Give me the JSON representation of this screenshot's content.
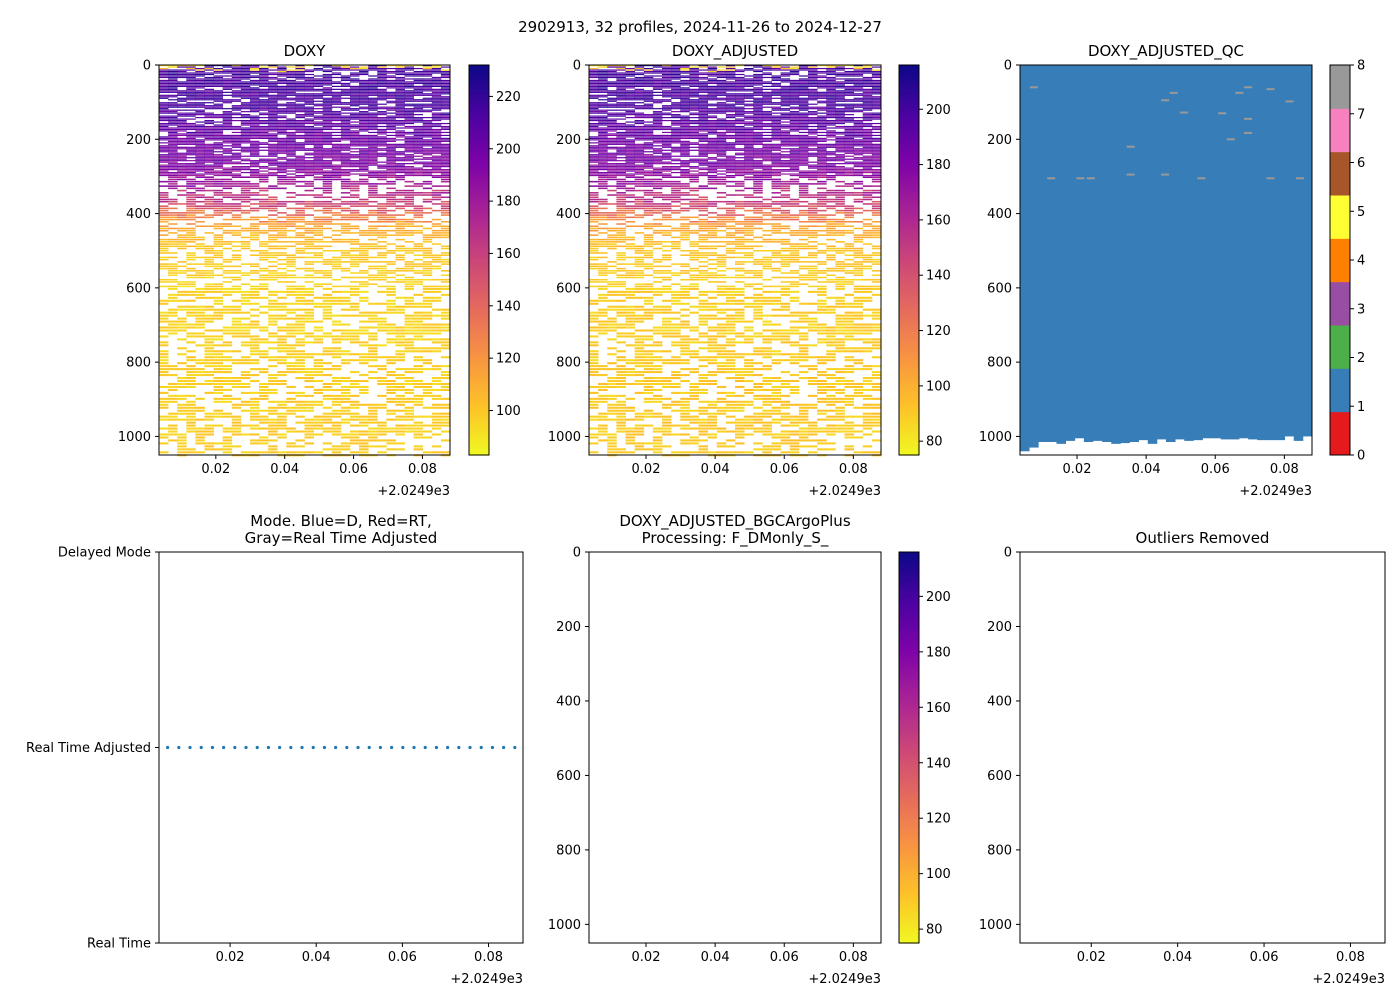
{
  "figure_title": "2902913, 32 profiles, 2024-11-26 to 2024-12-27",
  "chart_data": [
    {
      "id": "doxy",
      "type": "heatmap",
      "title": "DOXY",
      "x_offset_label": "+2.0249e3",
      "xlim": [
        0.0035,
        0.088
      ],
      "ylim": [
        1050,
        0
      ],
      "xticks": [
        "0.02",
        "0.04",
        "0.06",
        "0.08"
      ],
      "xtick_values": [
        0.02,
        0.04,
        0.06,
        0.08
      ],
      "yticks": [
        "0",
        "200",
        "400",
        "600",
        "800",
        "1000"
      ],
      "ytick_values": [
        0,
        200,
        400,
        600,
        800,
        1000
      ],
      "colorbar": {
        "cmap": "plasma_r",
        "vmin": 83,
        "vmax": 232,
        "ticks": [
          "100",
          "120",
          "140",
          "160",
          "180",
          "200",
          "220"
        ],
        "tick_values": [
          100,
          120,
          140,
          160,
          180,
          200,
          220
        ]
      },
      "profiles": 32,
      "depth_max": 1050,
      "depth_profile": [
        {
          "depth": 0,
          "value": 215
        },
        {
          "depth": 100,
          "value": 212
        },
        {
          "depth": 200,
          "value": 200
        },
        {
          "depth": 280,
          "value": 192
        },
        {
          "depth": 330,
          "value": 175
        },
        {
          "depth": 380,
          "value": 150
        },
        {
          "depth": 420,
          "value": 115
        },
        {
          "depth": 480,
          "value": 100
        },
        {
          "depth": 600,
          "value": 95
        },
        {
          "depth": 800,
          "value": 96
        },
        {
          "depth": 1050,
          "value": 98
        }
      ]
    },
    {
      "id": "doxy_adjusted",
      "type": "heatmap",
      "title": "DOXY_ADJUSTED",
      "x_offset_label": "+2.0249e3",
      "xlim": [
        0.0035,
        0.088
      ],
      "ylim": [
        1050,
        0
      ],
      "xticks": [
        "0.02",
        "0.04",
        "0.06",
        "0.08"
      ],
      "xtick_values": [
        0.02,
        0.04,
        0.06,
        0.08
      ],
      "yticks": [
        "0",
        "200",
        "400",
        "600",
        "800",
        "1000"
      ],
      "ytick_values": [
        0,
        200,
        400,
        600,
        800,
        1000
      ],
      "colorbar": {
        "cmap": "plasma_r",
        "vmin": 75,
        "vmax": 216,
        "ticks": [
          "80",
          "100",
          "120",
          "140",
          "160",
          "180",
          "200"
        ],
        "tick_values": [
          80,
          100,
          120,
          140,
          160,
          180,
          200
        ]
      },
      "profiles": 32,
      "depth_max": 1050,
      "depth_profile": [
        {
          "depth": 0,
          "value": 200
        },
        {
          "depth": 100,
          "value": 197
        },
        {
          "depth": 200,
          "value": 186
        },
        {
          "depth": 280,
          "value": 178
        },
        {
          "depth": 330,
          "value": 162
        },
        {
          "depth": 380,
          "value": 140
        },
        {
          "depth": 420,
          "value": 107
        },
        {
          "depth": 480,
          "value": 92
        },
        {
          "depth": 600,
          "value": 88
        },
        {
          "depth": 800,
          "value": 89
        },
        {
          "depth": 1050,
          "value": 90
        }
      ]
    },
    {
      "id": "doxy_adjusted_qc",
      "type": "heatmap",
      "title": "DOXY_ADJUSTED_QC",
      "x_offset_label": "+2.0249e3",
      "xlim": [
        0.0035,
        0.088
      ],
      "ylim": [
        1050,
        0
      ],
      "xticks": [
        "0.02",
        "0.04",
        "0.06",
        "0.08"
      ],
      "xtick_values": [
        0.02,
        0.04,
        0.06,
        0.08
      ],
      "yticks": [
        "0",
        "200",
        "400",
        "600",
        "800",
        "1000"
      ],
      "ytick_values": [
        0,
        200,
        400,
        600,
        800,
        1000
      ],
      "colorbar": {
        "cmap": "qc_categorical",
        "vmin": 0,
        "vmax": 8,
        "ticks": [
          "0",
          "1",
          "2",
          "3",
          "4",
          "5",
          "6",
          "7",
          "8"
        ],
        "tick_values": [
          0,
          1,
          2,
          3,
          4,
          5,
          6,
          7,
          8
        ],
        "colors": [
          "#e41a1c",
          "#377eb8",
          "#4daf4a",
          "#984ea3",
          "#ff7f00",
          "#ffff33",
          "#a65628",
          "#f781bf",
          "#999999"
        ]
      },
      "dominant_flag": 1,
      "profile_bottom_depths": [
        1040,
        1030,
        1015,
        1015,
        1020,
        1012,
        1005,
        1015,
        1012,
        1015,
        1020,
        1018,
        1015,
        1010,
        1020,
        1008,
        1015,
        1008,
        1012,
        1010,
        1005,
        1005,
        1008,
        1008,
        1005,
        1008,
        1010,
        1010,
        1010,
        1000,
        1012,
        1000
      ],
      "flag8_marks": [
        {
          "x": 0.0075,
          "depth": 60
        },
        {
          "x": 0.0125,
          "depth": 305
        },
        {
          "x": 0.021,
          "depth": 305
        },
        {
          "x": 0.024,
          "depth": 305
        },
        {
          "x": 0.0355,
          "depth": 220
        },
        {
          "x": 0.0355,
          "depth": 295
        },
        {
          "x": 0.0455,
          "depth": 95
        },
        {
          "x": 0.0455,
          "depth": 295
        },
        {
          "x": 0.048,
          "depth": 75
        },
        {
          "x": 0.051,
          "depth": 128
        },
        {
          "x": 0.056,
          "depth": 305
        },
        {
          "x": 0.062,
          "depth": 130
        },
        {
          "x": 0.0645,
          "depth": 200
        },
        {
          "x": 0.067,
          "depth": 75
        },
        {
          "x": 0.0695,
          "depth": 60
        },
        {
          "x": 0.0695,
          "depth": 145
        },
        {
          "x": 0.0695,
          "depth": 183
        },
        {
          "x": 0.076,
          "depth": 65
        },
        {
          "x": 0.076,
          "depth": 305
        },
        {
          "x": 0.0815,
          "depth": 98
        },
        {
          "x": 0.0845,
          "depth": 305
        }
      ]
    },
    {
      "id": "mode",
      "type": "scatter",
      "title": "Mode. Blue=D, Red=RT,\nGray=Real Time Adjusted",
      "title_lines": [
        "Mode. Blue=D, Red=RT,",
        "Gray=Real Time Adjusted"
      ],
      "x_offset_label": "+2.0249e3",
      "xlim": [
        0.0035,
        0.088
      ],
      "ylim": [
        0,
        2
      ],
      "xticks": [
        "0.02",
        "0.04",
        "0.06",
        "0.08"
      ],
      "xtick_values": [
        0.02,
        0.04,
        0.06,
        0.08
      ],
      "yticks": [
        "Real Time",
        "Real Time Adjusted",
        "Delayed Mode"
      ],
      "ytick_values": [
        0,
        1,
        2
      ],
      "series": [
        {
          "name": "Real Time Adjusted",
          "color": "#1f77b4",
          "y": 1,
          "x": [
            0.0055,
            0.0081,
            0.0107,
            0.0133,
            0.0159,
            0.0185,
            0.0211,
            0.0237,
            0.0263,
            0.0289,
            0.0315,
            0.0341,
            0.0367,
            0.0393,
            0.0419,
            0.0445,
            0.0471,
            0.0497,
            0.0523,
            0.0549,
            0.0575,
            0.0601,
            0.0627,
            0.0653,
            0.0679,
            0.0705,
            0.0731,
            0.0757,
            0.0783,
            0.0809,
            0.0835,
            0.0861
          ]
        }
      ]
    },
    {
      "id": "bgcargoplus",
      "type": "heatmap",
      "title": "DOXY_ADJUSTED_BGCArgoPlus\nProcessing: F_DMonly_S_",
      "title_lines": [
        "DOXY_ADJUSTED_BGCArgoPlus",
        "Processing: F_DMonly_S_"
      ],
      "x_offset_label": "+2.0249e3",
      "xlim": [
        0.0035,
        0.088
      ],
      "ylim": [
        1050,
        0
      ],
      "xticks": [
        "0.02",
        "0.04",
        "0.06",
        "0.08"
      ],
      "xtick_values": [
        0.02,
        0.04,
        0.06,
        0.08
      ],
      "yticks": [
        "0",
        "200",
        "400",
        "600",
        "800",
        "1000"
      ],
      "ytick_values": [
        0,
        200,
        400,
        600,
        800,
        1000
      ],
      "colorbar": {
        "cmap": "plasma_r",
        "vmin": 75,
        "vmax": 216,
        "ticks": [
          "80",
          "100",
          "120",
          "140",
          "160",
          "180",
          "200"
        ],
        "tick_values": [
          80,
          100,
          120,
          140,
          160,
          180,
          200
        ]
      },
      "empty": true
    },
    {
      "id": "outliers",
      "type": "scatter",
      "title": "Outliers Removed",
      "x_offset_label": "+2.0249e3",
      "xlim": [
        0.0035,
        0.088
      ],
      "ylim": [
        1050,
        0
      ],
      "xticks": [
        "0.02",
        "0.04",
        "0.06",
        "0.08"
      ],
      "xtick_values": [
        0.02,
        0.04,
        0.06,
        0.08
      ],
      "yticks": [
        "0",
        "200",
        "400",
        "600",
        "800",
        "1000"
      ],
      "ytick_values": [
        0,
        200,
        400,
        600,
        800,
        1000
      ],
      "empty": true
    }
  ]
}
